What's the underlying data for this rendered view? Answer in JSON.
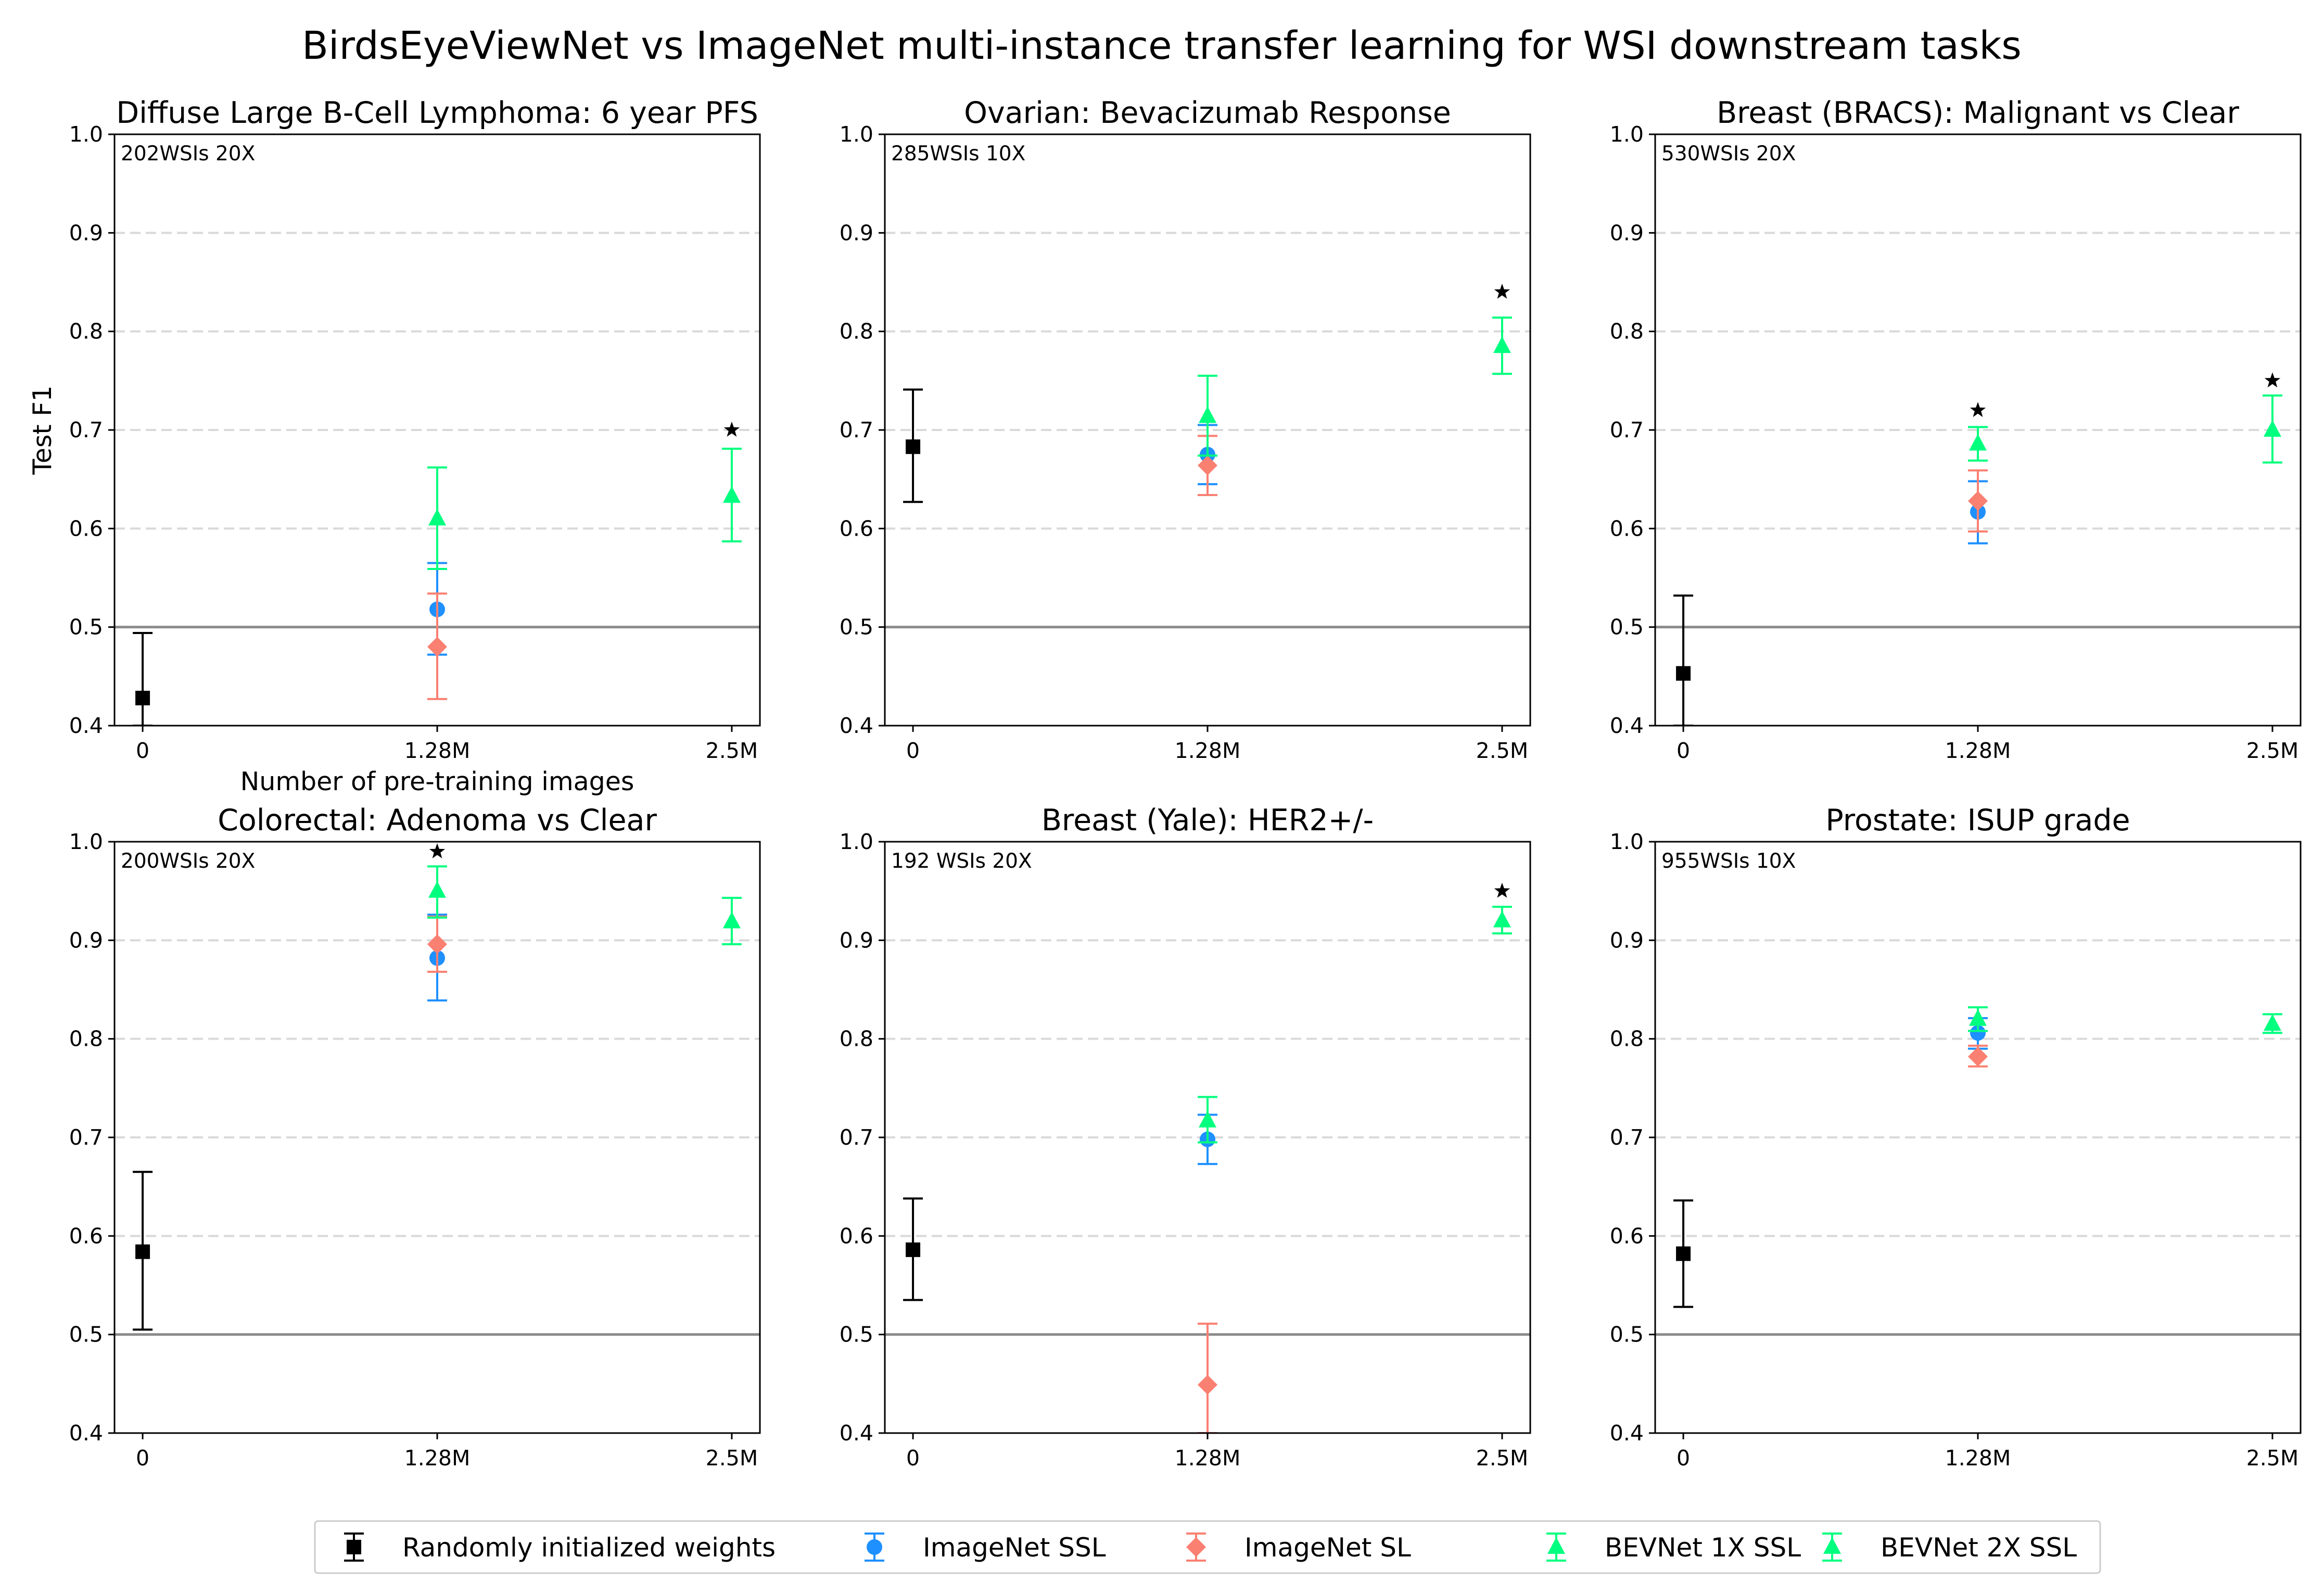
{
  "figure": {
    "title": "BirdsEyeViewNet vs ImageNet multi-instance transfer learning for WSI downstream tasks"
  },
  "x_axis": {
    "ticks": [
      "0",
      "1.28M",
      "2.5M"
    ],
    "xlabel": "Number of pre-training images"
  },
  "y_axis": {
    "ylabel": "Test F1",
    "ylim": [
      0.4,
      1.0
    ],
    "ticks": [
      "0.4",
      "0.5",
      "0.6",
      "0.7",
      "0.8",
      "0.9",
      "1.0"
    ]
  },
  "legend": {
    "placement": "bottom-center",
    "items": [
      {
        "key": "random",
        "label": "Randomly initialized weights",
        "color": "#000000",
        "marker": "square"
      },
      {
        "key": "imagenet_ssl",
        "label": "ImageNet SSL",
        "color": "#1e90ff",
        "marker": "circle"
      },
      {
        "key": "imagenet_sl",
        "label": "ImageNet SL",
        "color": "#fa8072",
        "marker": "diamond"
      },
      {
        "key": "bev1x",
        "label": "BEVNet 1X SSL",
        "color": "#00ff7f",
        "marker": "triangle"
      },
      {
        "key": "bev2x",
        "label": "BEVNet 2X SSL",
        "color": "#00ff7f",
        "marker": "triangle"
      }
    ]
  },
  "chart_data": [
    {
      "type": "scatter",
      "title": "Diffuse Large B-Cell Lymphoma: 6 year PFS",
      "annotation": "202WSIs 20X",
      "ylabel": "Test F1",
      "xlabel": "Number of pre-training images",
      "ylim": [
        0.4,
        1.0
      ],
      "baseline": 0.5,
      "grid": "horizontal-dashed",
      "series": [
        {
          "key": "random",
          "x": "0",
          "y": 0.428,
          "err": [
            0.4,
            0.494
          ]
        },
        {
          "key": "imagenet_ssl",
          "x": "1.28M",
          "y": 0.518,
          "err": [
            0.472,
            0.565
          ]
        },
        {
          "key": "imagenet_sl",
          "x": "1.28M",
          "y": 0.48,
          "err": [
            0.427,
            0.534
          ]
        },
        {
          "key": "bev1x",
          "x": "1.28M",
          "y": 0.61,
          "err": [
            0.559,
            0.662
          ]
        },
        {
          "key": "bev2x",
          "x": "2.5M",
          "y": 0.633,
          "err": [
            0.587,
            0.681
          ]
        }
      ],
      "stars": [
        {
          "x": "2.5M",
          "y": 0.7
        }
      ]
    },
    {
      "type": "scatter",
      "title": "Ovarian: Bevacizumab Response",
      "annotation": "285WSIs 10X",
      "ylim": [
        0.4,
        1.0
      ],
      "baseline": 0.5,
      "grid": "horizontal-dashed",
      "series": [
        {
          "key": "random",
          "x": "0",
          "y": 0.683,
          "err": [
            0.627,
            0.741
          ]
        },
        {
          "key": "imagenet_ssl",
          "x": "1.28M",
          "y": 0.675,
          "err": [
            0.645,
            0.705
          ]
        },
        {
          "key": "imagenet_sl",
          "x": "1.28M",
          "y": 0.664,
          "err": [
            0.634,
            0.694
          ]
        },
        {
          "key": "bev1x",
          "x": "1.28M",
          "y": 0.714,
          "err": [
            0.674,
            0.755
          ]
        },
        {
          "key": "bev2x",
          "x": "2.5M",
          "y": 0.785,
          "err": [
            0.757,
            0.814
          ]
        }
      ],
      "stars": [
        {
          "x": "2.5M",
          "y": 0.84
        }
      ]
    },
    {
      "type": "scatter",
      "title": "Breast (BRACS): Malignant vs Clear",
      "annotation": "530WSIs 20X",
      "ylim": [
        0.4,
        1.0
      ],
      "baseline": 0.5,
      "grid": "horizontal-dashed",
      "series": [
        {
          "key": "random",
          "x": "0",
          "y": 0.453,
          "err": [
            0.4,
            0.532
          ]
        },
        {
          "key": "imagenet_ssl",
          "x": "1.28M",
          "y": 0.617,
          "err": [
            0.585,
            0.648
          ]
        },
        {
          "key": "imagenet_sl",
          "x": "1.28M",
          "y": 0.628,
          "err": [
            0.597,
            0.659
          ]
        },
        {
          "key": "bev1x",
          "x": "1.28M",
          "y": 0.686,
          "err": [
            0.669,
            0.703
          ]
        },
        {
          "key": "bev2x",
          "x": "2.5M",
          "y": 0.7,
          "err": [
            0.667,
            0.735
          ]
        }
      ],
      "stars": [
        {
          "x": "1.28M",
          "y": 0.72
        },
        {
          "x": "2.5M",
          "y": 0.75
        }
      ]
    },
    {
      "type": "scatter",
      "title": "Colorectal: Adenoma vs Clear",
      "annotation": "200WSIs 20X",
      "ylim": [
        0.4,
        1.0
      ],
      "baseline": 0.5,
      "grid": "horizontal-dashed",
      "series": [
        {
          "key": "random",
          "x": "0",
          "y": 0.584,
          "err": [
            0.505,
            0.665
          ]
        },
        {
          "key": "imagenet_ssl",
          "x": "1.28M",
          "y": 0.882,
          "err": [
            0.839,
            0.926
          ]
        },
        {
          "key": "imagenet_sl",
          "x": "1.28M",
          "y": 0.896,
          "err": [
            0.868,
            0.924
          ]
        },
        {
          "key": "bev1x",
          "x": "1.28M",
          "y": 0.95,
          "err": [
            0.923,
            0.975
          ]
        },
        {
          "key": "bev2x",
          "x": "2.5M",
          "y": 0.919,
          "err": [
            0.896,
            0.943
          ]
        }
      ],
      "stars": [
        {
          "x": "1.28M",
          "y": 0.99
        }
      ]
    },
    {
      "type": "scatter",
      "title": "Breast (Yale): HER2+/-",
      "annotation": "192 WSIs 20X",
      "ylim": [
        0.4,
        1.0
      ],
      "baseline": 0.5,
      "grid": "horizontal-dashed",
      "series": [
        {
          "key": "random",
          "x": "0",
          "y": 0.586,
          "err": [
            0.535,
            0.638
          ]
        },
        {
          "key": "imagenet_ssl",
          "x": "1.28M",
          "y": 0.698,
          "err": [
            0.673,
            0.723
          ]
        },
        {
          "key": "imagenet_sl",
          "x": "1.28M",
          "y": 0.449,
          "err": [
            0.4,
            0.511
          ]
        },
        {
          "key": "bev1x",
          "x": "1.28M",
          "y": 0.717,
          "err": [
            0.695,
            0.741
          ]
        },
        {
          "key": "bev2x",
          "x": "2.5M",
          "y": 0.92,
          "err": [
            0.907,
            0.934
          ]
        }
      ],
      "stars": [
        {
          "x": "2.5M",
          "y": 0.95
        }
      ]
    },
    {
      "type": "scatter",
      "title": "Prostate: ISUP grade",
      "annotation": "955WSIs 10X",
      "ylim": [
        0.4,
        1.0
      ],
      "baseline": 0.5,
      "grid": "horizontal-dashed",
      "series": [
        {
          "key": "random",
          "x": "0",
          "y": 0.582,
          "err": [
            0.528,
            0.636
          ]
        },
        {
          "key": "imagenet_ssl",
          "x": "1.28M",
          "y": 0.806,
          "err": [
            0.79,
            0.821
          ]
        },
        {
          "key": "imagenet_sl",
          "x": "1.28M",
          "y": 0.782,
          "err": [
            0.772,
            0.793
          ]
        },
        {
          "key": "bev1x",
          "x": "1.28M",
          "y": 0.82,
          "err": [
            0.808,
            0.832
          ]
        },
        {
          "key": "bev2x",
          "x": "2.5M",
          "y": 0.815,
          "err": [
            0.806,
            0.825
          ]
        }
      ],
      "stars": []
    }
  ]
}
